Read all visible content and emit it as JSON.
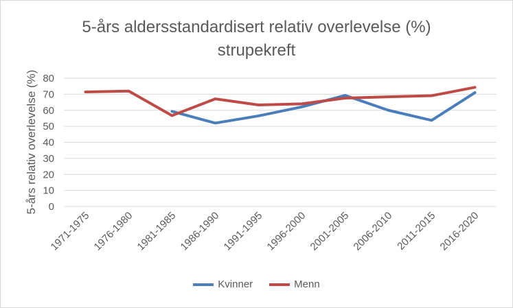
{
  "chart_data": {
    "type": "line",
    "title": "5-års aldersstandardisert relativ overlevelse (%)",
    "subtitle": "strupekreft",
    "xlabel": "",
    "ylabel": "5-års relativ overlevelse (%)",
    "ylim": [
      0,
      80
    ],
    "yticks": [
      0,
      10,
      20,
      30,
      40,
      50,
      60,
      70,
      80
    ],
    "grid": true,
    "legend_position": "bottom",
    "categories": [
      "1971-1975",
      "1976-1980",
      "1981-1985",
      "1986-1990",
      "1991-1995",
      "1996-2000",
      "2001-2005",
      "2006-2010",
      "2011-2015",
      "2016-2020"
    ],
    "series": [
      {
        "name": "Kvinner",
        "color": "#4a7ebb",
        "values": [
          null,
          null,
          59.3,
          52.0,
          56.5,
          62.1,
          69.3,
          60.0,
          53.7,
          71.0
        ]
      },
      {
        "name": "Menn",
        "color": "#be4b48",
        "values": [
          71.4,
          72.0,
          56.7,
          67.1,
          63.3,
          64.0,
          67.6,
          68.4,
          69.1,
          74.3
        ]
      }
    ]
  }
}
